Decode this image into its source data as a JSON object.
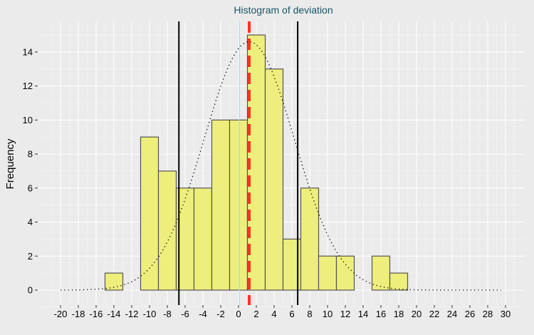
{
  "chart_data": {
    "type": "bar",
    "title": "Histogram of deviation",
    "xlabel": "",
    "ylabel": "Frequency",
    "xlim": [
      -21,
      31
    ],
    "ylim": [
      -0.8,
      15.9
    ],
    "x_ticks": [
      -20,
      -18,
      -16,
      -14,
      -12,
      -10,
      -8,
      -6,
      -4,
      -2,
      0,
      2,
      4,
      6,
      8,
      10,
      12,
      14,
      16,
      18,
      20,
      22,
      24,
      26,
      28,
      30
    ],
    "y_ticks": [
      0,
      2,
      4,
      6,
      8,
      10,
      12,
      14
    ],
    "bin_width": 2,
    "bins": [
      {
        "from": -19,
        "to": -17,
        "count": 0
      },
      {
        "from": -17,
        "to": -15,
        "count": 0
      },
      {
        "from": -15,
        "to": -13,
        "count": 1
      },
      {
        "from": -13,
        "to": -11,
        "count": 0
      },
      {
        "from": -11,
        "to": -9,
        "count": 9
      },
      {
        "from": -9,
        "to": -7,
        "count": 7
      },
      {
        "from": -7,
        "to": -5,
        "count": 6
      },
      {
        "from": -5,
        "to": -3,
        "count": 6
      },
      {
        "from": -3,
        "to": -1,
        "count": 10
      },
      {
        "from": -1,
        "to": 1,
        "count": 10
      },
      {
        "from": 1,
        "to": 3,
        "count": 15
      },
      {
        "from": 3,
        "to": 5,
        "count": 13
      },
      {
        "from": 5,
        "to": 7,
        "count": 3
      },
      {
        "from": 7,
        "to": 9,
        "count": 6
      },
      {
        "from": 9,
        "to": 11,
        "count": 2
      },
      {
        "from": 11,
        "to": 13,
        "count": 2
      },
      {
        "from": 13,
        "to": 15,
        "count": 0
      },
      {
        "from": 15,
        "to": 17,
        "count": 2
      },
      {
        "from": 17,
        "to": 19,
        "count": 1
      },
      {
        "from": 19,
        "to": 29,
        "count": 0
      }
    ],
    "normal_curve": {
      "mean": 1.2,
      "sd": 5.08,
      "n": 93,
      "x_range": [
        -20,
        29.5
      ]
    },
    "vlines": [
      {
        "x": -6.7,
        "color": "#000000",
        "style": "solid"
      },
      {
        "x": 6.65,
        "color": "#000000",
        "style": "solid"
      },
      {
        "x": 0.1,
        "color": "#add8e6",
        "style": "solid"
      },
      {
        "x": 1.2,
        "color": "#ff3322",
        "style": "dashed"
      }
    ],
    "colors": {
      "bar_fill": "#eeee77",
      "bar_stroke": "#555555",
      "title": "#1a5566"
    },
    "grid": true
  }
}
